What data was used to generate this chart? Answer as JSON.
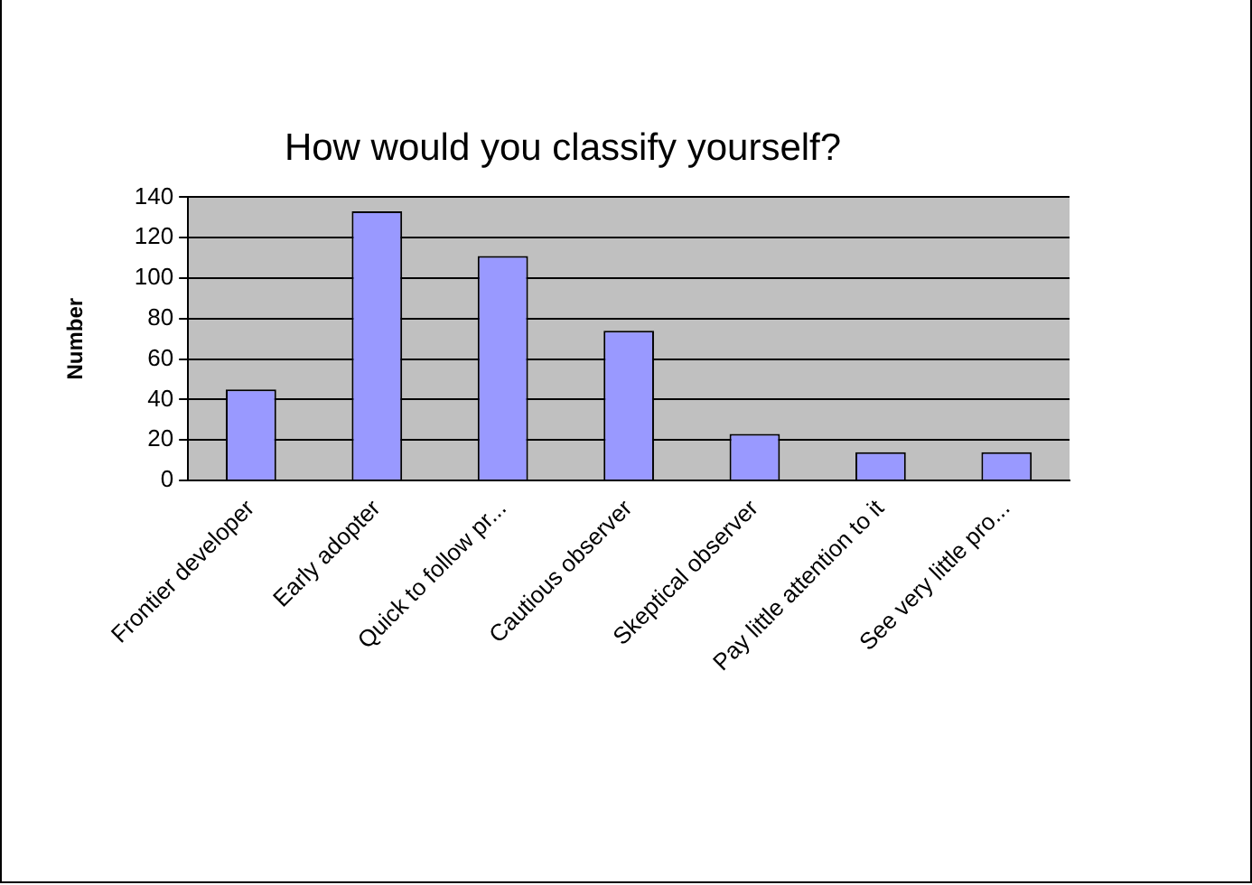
{
  "chart_data": {
    "type": "bar",
    "title": "How would you classify yourself?",
    "ylabel": "Number",
    "categories": [
      "Frontier developer",
      "Early adopter",
      "Quick to follow pr...",
      "Cautious observer",
      "Skeptical observer",
      "Pay little attention to it",
      "See very little pro..."
    ],
    "values": [
      45,
      133,
      111,
      74,
      23,
      14,
      14
    ],
    "color": "#9999ff",
    "ylim": [
      0,
      140
    ],
    "yticks": [
      0,
      20,
      40,
      60,
      80,
      100,
      120,
      140
    ],
    "grid": "y",
    "legend": false
  }
}
